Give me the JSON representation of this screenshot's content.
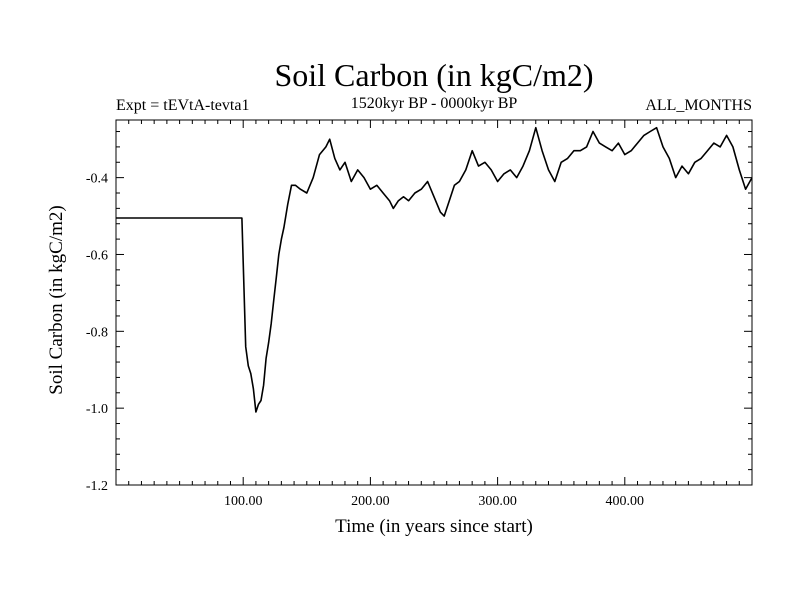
{
  "chart_data": {
    "type": "line",
    "title": "Soil Carbon (in kgC/m2)",
    "subtitle_left": "Expt = tEVtA-tevta1",
    "subtitle_center": "1520kyr BP - 0000kyr BP",
    "subtitle_right": "ALL_MONTHS",
    "xlabel": "Time (in years since start)",
    "ylabel": "Soil Carbon (in kgC/m2)",
    "xlim": [
      0,
      500
    ],
    "ylim": [
      -1.2,
      -0.25
    ],
    "x_ticks": [
      100,
      200,
      300,
      400
    ],
    "x_tick_labels": [
      "100.00",
      "200.00",
      "300.00",
      "400.00"
    ],
    "y_ticks": [
      -1.2,
      -1.0,
      -0.8,
      -0.6,
      -0.4
    ],
    "y_tick_labels": [
      "-1.2",
      "-1.0",
      "-0.8",
      "-0.6",
      "-0.4"
    ],
    "series": [
      {
        "name": "Soil Carbon",
        "x": [
          0,
          99,
          100,
          102,
          104,
          106,
          108,
          110,
          112,
          114,
          116,
          118,
          120,
          122,
          124,
          126,
          128,
          130,
          132,
          135,
          138,
          141,
          145,
          150,
          155,
          160,
          165,
          168,
          172,
          176,
          180,
          185,
          190,
          195,
          200,
          205,
          210,
          215,
          218,
          222,
          226,
          230,
          235,
          240,
          245,
          250,
          255,
          258,
          262,
          266,
          270,
          275,
          280,
          285,
          290,
          295,
          300,
          305,
          310,
          315,
          320,
          325,
          330,
          335,
          340,
          345,
          350,
          355,
          360,
          365,
          370,
          375,
          380,
          385,
          390,
          395,
          400,
          405,
          410,
          415,
          420,
          425,
          430,
          435,
          440,
          445,
          450,
          455,
          460,
          465,
          470,
          475,
          480,
          485,
          490,
          495,
          500
        ],
        "values": [
          -0.505,
          -0.505,
          -0.62,
          -0.84,
          -0.89,
          -0.91,
          -0.95,
          -1.01,
          -0.99,
          -0.98,
          -0.94,
          -0.87,
          -0.83,
          -0.78,
          -0.72,
          -0.66,
          -0.6,
          -0.56,
          -0.53,
          -0.47,
          -0.42,
          -0.42,
          -0.43,
          -0.44,
          -0.4,
          -0.34,
          -0.32,
          -0.3,
          -0.35,
          -0.38,
          -0.36,
          -0.41,
          -0.38,
          -0.4,
          -0.43,
          -0.42,
          -0.44,
          -0.46,
          -0.48,
          -0.46,
          -0.45,
          -0.46,
          -0.44,
          -0.43,
          -0.41,
          -0.45,
          -0.49,
          -0.5,
          -0.46,
          -0.42,
          -0.41,
          -0.38,
          -0.33,
          -0.37,
          -0.36,
          -0.38,
          -0.41,
          -0.39,
          -0.38,
          -0.4,
          -0.37,
          -0.33,
          -0.27,
          -0.33,
          -0.38,
          -0.41,
          -0.36,
          -0.35,
          -0.33,
          -0.33,
          -0.32,
          -0.28,
          -0.31,
          -0.32,
          -0.33,
          -0.31,
          -0.34,
          -0.33,
          -0.31,
          -0.29,
          -0.28,
          -0.27,
          -0.32,
          -0.35,
          -0.4,
          -0.37,
          -0.39,
          -0.36,
          -0.35,
          -0.33,
          -0.31,
          -0.32,
          -0.29,
          -0.32,
          -0.38,
          -0.43,
          -0.4
        ]
      }
    ]
  }
}
